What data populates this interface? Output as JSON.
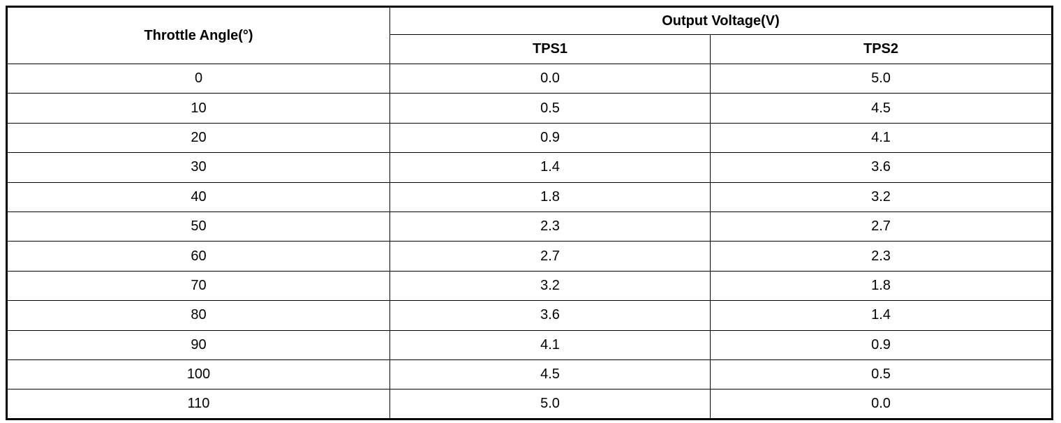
{
  "header": {
    "angle": "Throttle Angle(°)",
    "group": "Output Voltage(V)",
    "sub": [
      "TPS1",
      "TPS2"
    ]
  },
  "table": {
    "rows": [
      [
        "0",
        "0.0",
        "5.0"
      ],
      [
        "10",
        "0.5",
        "4.5"
      ],
      [
        "20",
        "0.9",
        "4.1"
      ],
      [
        "30",
        "1.4",
        "3.6"
      ],
      [
        "40",
        "1.8",
        "3.2"
      ],
      [
        "50",
        "2.3",
        "2.7"
      ],
      [
        "60",
        "2.7",
        "2.3"
      ],
      [
        "70",
        "3.2",
        "1.8"
      ],
      [
        "80",
        "3.6",
        "1.4"
      ],
      [
        "90",
        "4.1",
        "0.9"
      ],
      [
        "100",
        "4.5",
        "0.5"
      ],
      [
        "110",
        "5.0",
        "0.0"
      ]
    ]
  }
}
